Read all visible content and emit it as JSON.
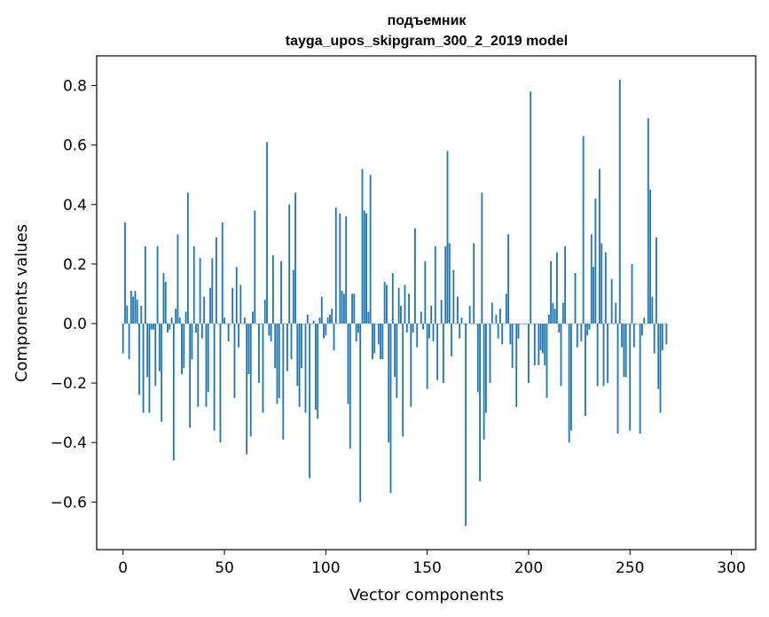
{
  "chart_data": {
    "type": "bar",
    "title_line1": "подъемник",
    "title_line2": "tayga_upos_skipgram_300_2_2019 model",
    "xlabel": "Vector components",
    "ylabel": "Components values",
    "xlim": [
      -13,
      312
    ],
    "ylim": [
      -0.76,
      0.9
    ],
    "xticks": [
      0,
      50,
      100,
      150,
      200,
      250,
      300
    ],
    "xtick_labels": [
      "0",
      "50",
      "100",
      "150",
      "200",
      "250",
      "300"
    ],
    "yticks": [
      -0.6,
      -0.4,
      -0.2,
      0.0,
      0.2,
      0.4,
      0.6,
      0.8
    ],
    "ytick_labels": [
      "−0.6",
      "−0.4",
      "−0.2",
      "0.0",
      "0.2",
      "0.4",
      "0.6",
      "0.8"
    ],
    "bar_color": "#1f77b4",
    "values": [
      -0.1,
      0.34,
      0.06,
      -0.12,
      0.11,
      0.09,
      0.11,
      0.08,
      -0.24,
      0.06,
      -0.3,
      0.26,
      -0.18,
      -0.3,
      -0.02,
      -0.02,
      -0.21,
      0.26,
      -0.16,
      -0.33,
      0.17,
      0.14,
      -0.03,
      -0.02,
      0.02,
      -0.46,
      0.05,
      0.3,
      0.02,
      -0.17,
      -0.15,
      0.04,
      0.44,
      -0.35,
      -0.12,
      0.26,
      -0.03,
      -0.28,
      0.22,
      -0.05,
      0.09,
      -0.28,
      -0.23,
      0.12,
      0.22,
      -0.36,
      0.29,
      0.0,
      -0.4,
      0.34,
      0.02,
      0.0,
      -0.06,
      0.0,
      0.12,
      -0.25,
      0.19,
      -0.08,
      0.13,
      0.0,
      0.02,
      -0.44,
      -0.17,
      -0.38,
      0.04,
      0.38,
      0.0,
      -0.2,
      0.0,
      -0.3,
      0.08,
      0.61,
      -0.04,
      -0.06,
      0.23,
      -0.15,
      -0.27,
      -0.25,
      0.21,
      -0.39,
      0.0,
      -0.16,
      0.4,
      -0.12,
      0.18,
      0.44,
      -0.21,
      -0.28,
      -0.15,
      0.0,
      -0.3,
      0.03,
      -0.52,
      0.0,
      0.01,
      -0.29,
      -0.32,
      0.02,
      0.09,
      -0.05,
      -0.04,
      0.02,
      0.03,
      0.05,
      -0.09,
      0.39,
      0.0,
      0.37,
      0.11,
      0.1,
      0.36,
      -0.27,
      -0.42,
      0.1,
      0.1,
      -0.06,
      -0.03,
      -0.6,
      0.52,
      0.38,
      0.37,
      0.04,
      0.5,
      -0.12,
      -0.1,
      0.0,
      -0.07,
      -0.12,
      -0.12,
      0.14,
      0.13,
      -0.4,
      -0.57,
      0.17,
      -0.18,
      -0.25,
      0.12,
      0.06,
      -0.38,
      0.13,
      -0.03,
      0.1,
      -0.28,
      -0.03,
      0.32,
      -0.08,
      0.0,
      0.04,
      -0.02,
      0.21,
      -0.22,
      -0.05,
      0.06,
      -0.06,
      0.26,
      -0.19,
      0.0,
      0.08,
      -0.2,
      0.26,
      0.58,
      0.27,
      -0.11,
      0.18,
      0.0,
      0.09,
      -0.05,
      0.02,
      0.0,
      -0.68,
      0.0,
      0.06,
      0.0,
      0.27,
      0.0,
      -0.23,
      -0.53,
      0.44,
      -0.39,
      -0.3,
      0.0,
      -0.2,
      0.07,
      0.0,
      0.03,
      -0.05,
      0.05,
      -0.07,
      0.0,
      0.1,
      0.3,
      -0.07,
      -0.15,
      0.0,
      -0.28,
      -0.05,
      0.0,
      0.0,
      0.0,
      0.0,
      -0.2,
      0.78,
      0.0,
      -0.14,
      0.0,
      -0.14,
      -0.09,
      -0.1,
      -0.14,
      -0.25,
      0.03,
      0.21,
      0.07,
      0.05,
      0.24,
      -0.03,
      -0.21,
      0.07,
      0.26,
      0.0,
      -0.4,
      -0.36,
      0.0,
      0.17,
      -0.08,
      0.0,
      -0.06,
      0.63,
      -0.31,
      -0.04,
      -0.02,
      0.3,
      0.19,
      0.42,
      -0.21,
      0.52,
      0.27,
      -0.21,
      0.24,
      -0.2,
      0.0,
      0.15,
      0.0,
      0.07,
      -0.37,
      0.82,
      -0.08,
      -0.18,
      -0.18,
      0.0,
      -0.36,
      0.2,
      -0.08,
      0.0,
      0.0,
      -0.37,
      -0.04,
      0.02,
      0.0,
      0.69,
      0.45,
      0.09,
      -0.1,
      0.29,
      -0.22,
      -0.3,
      -0.09,
      0.0,
      -0.07
    ]
  }
}
